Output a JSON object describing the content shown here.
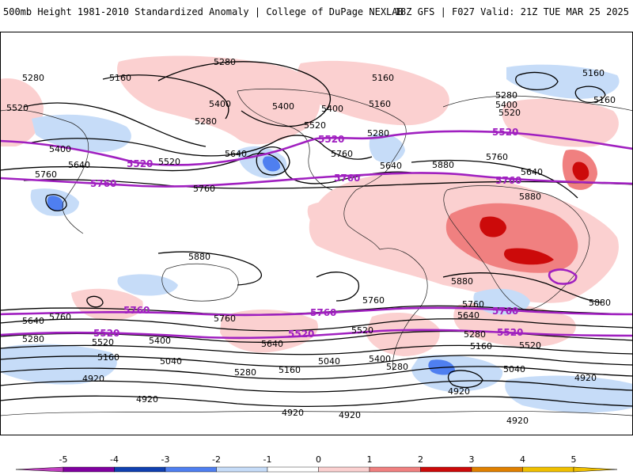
{
  "header": {
    "title": "500mb Height 1981-2010 Standardized Anomaly | College of DuPage NEXLAB",
    "run_info": "18Z GFS | F027 Valid: 21Z TUE MAR 25 2025"
  },
  "map": {
    "colors": {
      "pos1": "#fbd0d0",
      "pos2": "#f08080",
      "pos3": "#cc0a0a",
      "neg1": "#c6dcf8",
      "neg2": "#4f7ff0",
      "contour": "#000000",
      "highlight": "#a020c0",
      "coast": "#222222"
    },
    "height_labels": {
      "l5280_a": "5280",
      "l5280_b": "5280",
      "l5280_c": "5280",
      "l5280_d": "5280",
      "l5280_e": "5280",
      "l5280_f": "5280",
      "l5280_g": "5280",
      "l5280_h": "5280",
      "l5280_i": "5280",
      "l5160_a": "5160",
      "l5160_b": "5160",
      "l5160_c": "5160",
      "l5160_d": "5160",
      "l5160_e": "5160",
      "l5160_f": "5160",
      "l5160_g": "5160",
      "l5160_h": "5160",
      "l5400_a": "5400",
      "l5400_b": "5400",
      "l5400_c": "5400",
      "l5400_d": "5400",
      "l5400_e": "5400",
      "l5400_f": "5400",
      "l5400_g": "5400",
      "l5520_a": "5520",
      "l5520_b": "5520",
      "l5520_c": "5520",
      "l5520_d": "5520",
      "l5520_e": "5520",
      "l5520_f": "5520",
      "l5520_g": "5520",
      "l5640_a": "5640",
      "l5640_b": "5640",
      "l5640_c": "5640",
      "l5640_d": "5640",
      "l5640_e": "5640",
      "l5640_f": "5640",
      "l5640_g": "5640",
      "l5760_a": "5760",
      "l5760_b": "5760",
      "l5760_c": "5760",
      "l5760_d": "5760",
      "l5760_e": "5760",
      "l5760_f": "5760",
      "l5760_g": "5760",
      "l5880_a": "5880",
      "l5880_b": "5880",
      "l5880_c": "5880",
      "l5880_d": "5880",
      "l5880_e": "5880",
      "l5040_a": "5040",
      "l5040_b": "5040",
      "l5040_c": "5040",
      "l4920_a": "4920",
      "l4920_b": "4920",
      "l4920_c": "4920",
      "l4920_d": "4920",
      "l4920_e": "4920",
      "l4920_f": "4920",
      "l4920_g": "4920"
    },
    "highlight_labels": {
      "h5520_a": "5520",
      "h5520_b": "5520",
      "h5520_c": "5520",
      "h5520_d": "5520",
      "h5520_e": "5520",
      "h5520_f": "5520",
      "h5760_a": "5760",
      "h5760_b": "5760",
      "h5760_c": "5760",
      "h5760_d": "5760",
      "h5760_e": "5760"
    }
  },
  "colorbar": {
    "ticks": [
      "-5",
      "-4",
      "-3",
      "-2",
      "-1",
      "0",
      "1",
      "2",
      "3",
      "4",
      "5"
    ],
    "colors": [
      "#c040c0",
      "#8000a0",
      "#1040b0",
      "#4f7ff0",
      "#c6dcf8",
      "#ffffff",
      "#fbd0d0",
      "#f08080",
      "#cc0a0a",
      "#e08000",
      "#f0c000"
    ]
  }
}
